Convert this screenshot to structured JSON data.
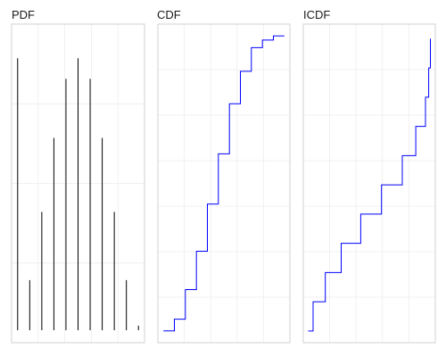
{
  "chart_data": [
    {
      "type": "bar",
      "title": "PDF",
      "x": [
        0,
        1,
        2,
        3,
        4,
        5,
        6,
        7,
        8,
        9,
        10
      ],
      "values": [
        0.5,
        0.11,
        0.23,
        0.36,
        0.464,
        0.5,
        0.464,
        0.36,
        0.23,
        0.11,
        0.03
      ],
      "xlim": [
        -0.5,
        10.5
      ],
      "ylim": [
        0,
        0.56
      ],
      "grid": true,
      "color": "#000000"
    },
    {
      "type": "line",
      "title": "CDF",
      "step": "post",
      "x": [
        0,
        1,
        2,
        3,
        4,
        5,
        6,
        7,
        8,
        9,
        10,
        11
      ],
      "values": [
        0.0,
        0.04,
        0.14,
        0.27,
        0.43,
        0.6,
        0.77,
        0.88,
        0.96,
        0.986,
        1.0,
        1.0
      ],
      "xlim": [
        -0.5,
        11.5
      ],
      "ylim": [
        -0.04,
        1.04
      ],
      "grid": true,
      "color": "#0000ff"
    },
    {
      "type": "line",
      "title": "ICDF",
      "step": "post",
      "x": [
        0.0,
        0.04,
        0.14,
        0.27,
        0.43,
        0.6,
        0.77,
        0.88,
        0.96,
        0.986,
        1.0
      ],
      "values": [
        0,
        1,
        2,
        3,
        4,
        5,
        6,
        7,
        8,
        9,
        10
      ],
      "xlim": [
        -0.04,
        1.04
      ],
      "ylim": [
        -0.4,
        10.5
      ],
      "grid": true,
      "color": "#000000"
    }
  ]
}
